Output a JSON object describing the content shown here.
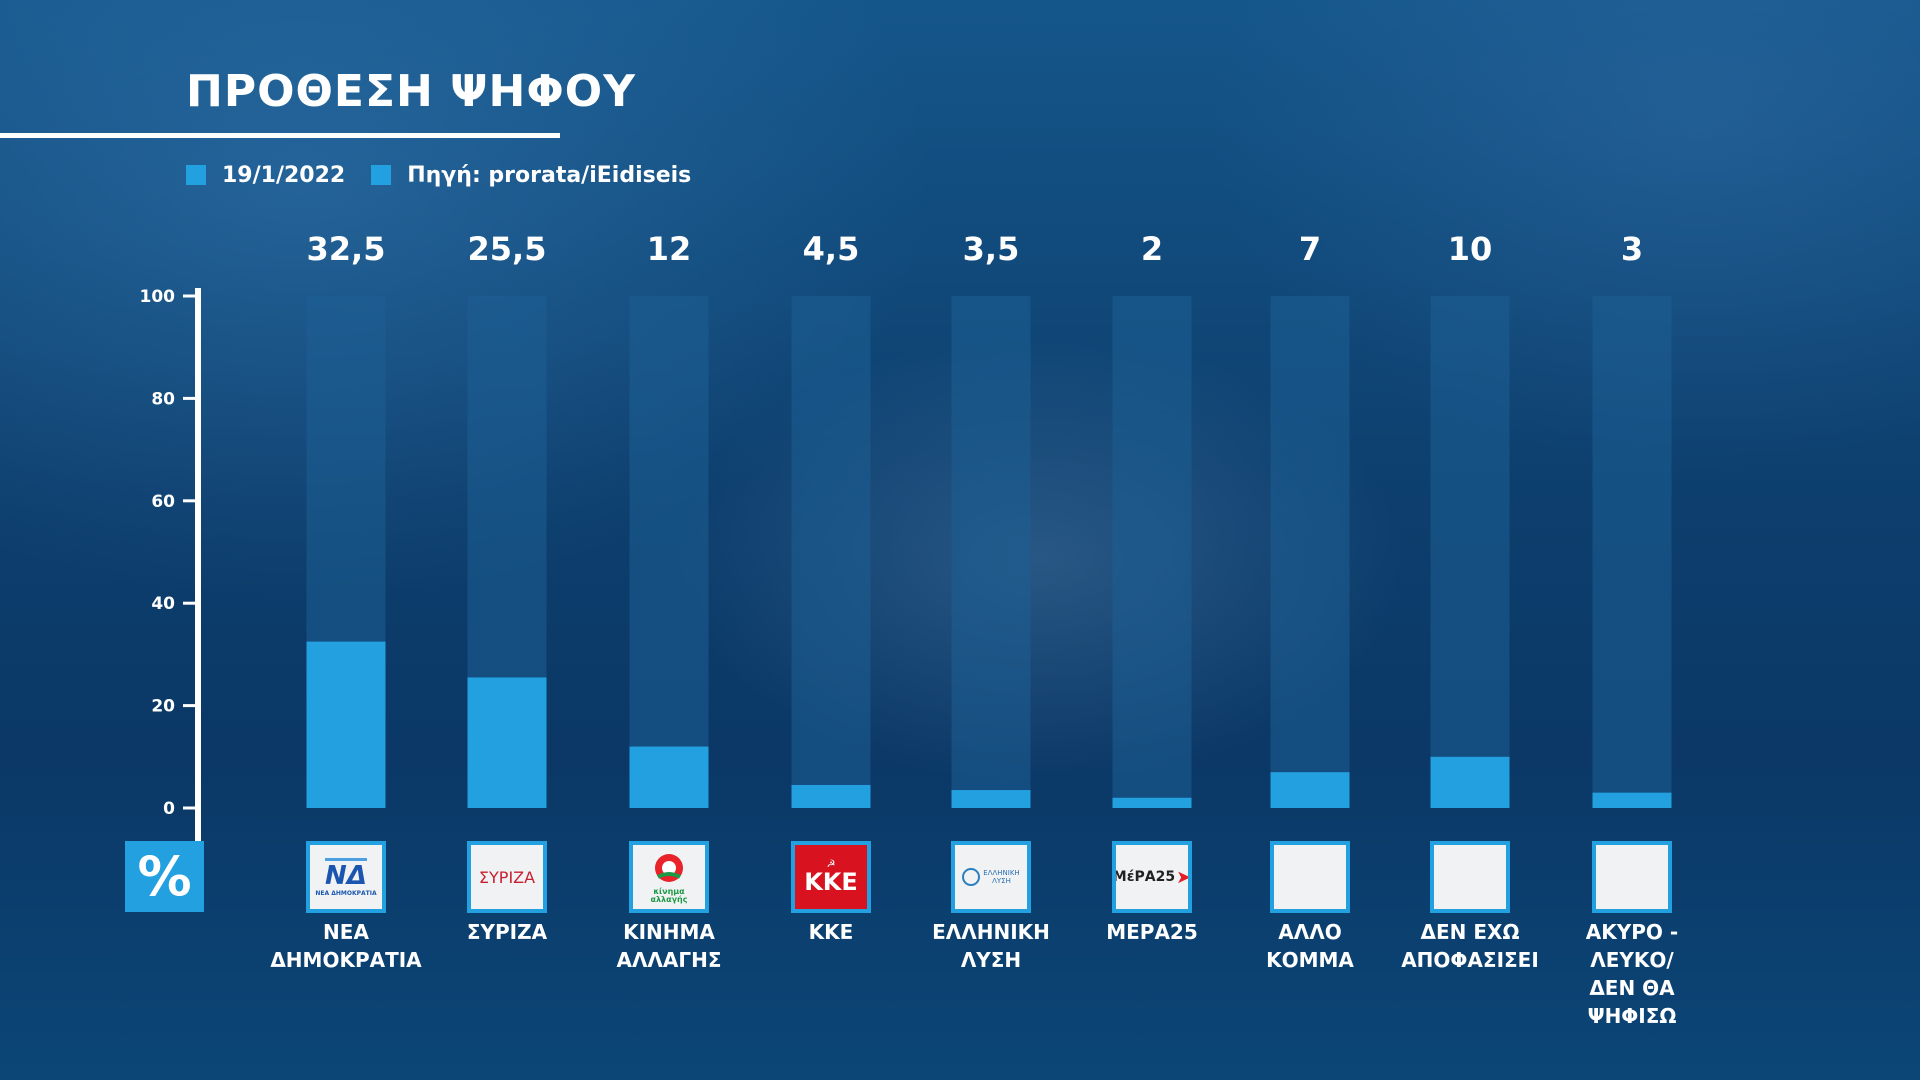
{
  "title": "ΠΡΟΘΕΣΗ ΨΗΦΟΥ",
  "legend": {
    "items": [
      "19/1/2022",
      "Πηγή: prorata/iEidiseis"
    ],
    "color": "#22a0e0"
  },
  "percent_symbol": "%",
  "colors": {
    "bar": "#22a0e0",
    "track": "#1d5e94",
    "axis": "#ffffff"
  },
  "parties": [
    {
      "label": "ΝΕΑ\nΔΗΜΟΚΡΑΤΙΑ",
      "logo_icon": "nea-dimokratia-logo-icon",
      "logo_text": "ΝΔ",
      "logo_subtext": "ΝΕΑ ΔΗΜΟΚΡΑΤΙΑ"
    },
    {
      "label": "ΣΥΡΙΖΑ",
      "logo_icon": "syriza-logo-icon",
      "logo_text": "ΣΥΡΙΖΑ",
      "logo_subtext": ""
    },
    {
      "label": "ΚΙΝΗΜΑ\nΑΛΛΑΓΗΣ",
      "logo_icon": "kinima-allagis-logo-icon",
      "logo_text": "κίνημα αλλαγής",
      "logo_subtext": ""
    },
    {
      "label": "ΚΚΕ",
      "logo_icon": "kke-logo-icon",
      "logo_text": "ΚΚΕ",
      "logo_subtext": ""
    },
    {
      "label": "ΕΛΛΗΝΙΚΗ\nΛΥΣΗ",
      "logo_icon": "elliniki-lysi-logo-icon",
      "logo_text": "ΕΛΛΗΝΙΚΗ ΛΥΣΗ",
      "logo_subtext": ""
    },
    {
      "label": "ΜΕΡΑ25",
      "logo_icon": "mera25-logo-icon",
      "logo_text": "ΜέΡΑ25",
      "logo_subtext": ""
    },
    {
      "label": "ΑΛΛΟ\nΚΟΜΜΑ",
      "logo_icon": "",
      "logo_text": "",
      "logo_subtext": ""
    },
    {
      "label": "ΔΕΝ ΕΧΩ\nΑΠΟΦΑΣΙΣΕΙ",
      "logo_icon": "",
      "logo_text": "",
      "logo_subtext": ""
    },
    {
      "label": "ΑΚΥΡΟ -\nΛΕΥΚΟ/\nΔΕΝ ΘΑ\nΨΗΦΙΣΩ",
      "logo_icon": "",
      "logo_text": "",
      "logo_subtext": ""
    }
  ],
  "chart_data": {
    "type": "bar",
    "title": "ΠΡΟΘΕΣΗ ΨΗΦΟΥ",
    "categories": [
      "ΝΕΑ ΔΗΜΟΚΡΑΤΙΑ",
      "ΣΥΡΙΖΑ",
      "ΚΙΝΗΜΑ ΑΛΛΑΓΗΣ",
      "ΚΚΕ",
      "ΕΛΛΗΝΙΚΗ ΛΥΣΗ",
      "ΜΕΡΑ25",
      "ΑΛΛΟ ΚΟΜΜΑ",
      "ΔΕΝ ΕΧΩ ΑΠΟΦΑΣΙΣΕΙ",
      "ΑΚΥΡΟ - ΛΕΥΚΟ/ ΔΕΝ ΘΑ ΨΗΦΙΣΩ"
    ],
    "values": [
      32.5,
      25.5,
      12,
      4.5,
      3.5,
      2,
      7,
      10,
      3
    ],
    "value_labels": [
      "32,5",
      "25,5",
      "12",
      "4,5",
      "3,5",
      "2",
      "7",
      "10",
      "3"
    ],
    "ylim": [
      0,
      100
    ],
    "yticks": [
      0,
      20,
      40,
      60,
      80,
      100
    ],
    "ylabel": "%",
    "xlabel": "",
    "grid": false,
    "legend": "top-left"
  }
}
